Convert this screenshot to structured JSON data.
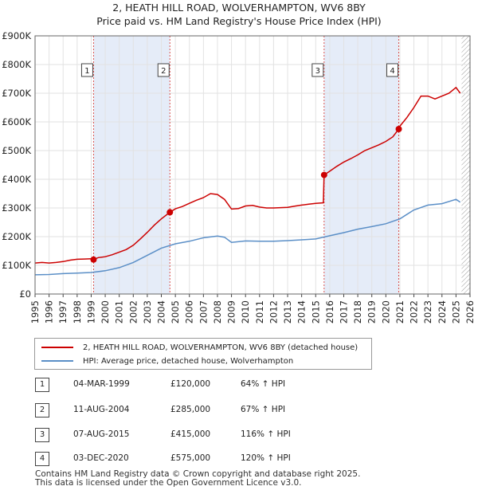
{
  "chart_data": {
    "type": "line",
    "title": "2, HEATH HILL ROAD, WOLVERHAMPTON, WV6 8BY",
    "subtitle": "Price paid vs. HM Land Registry's House Price Index (HPI)",
    "xlim": [
      1995,
      2026
    ],
    "ylim": [
      0,
      900000
    ],
    "x_ticks": [
      "1995",
      "1996",
      "1997",
      "1998",
      "1999",
      "2000",
      "2001",
      "2002",
      "2003",
      "2004",
      "2005",
      "2006",
      "2007",
      "2008",
      "2009",
      "2010",
      "2011",
      "2012",
      "2013",
      "2014",
      "2015",
      "2016",
      "2017",
      "2018",
      "2019",
      "2020",
      "2021",
      "2022",
      "2023",
      "2024",
      "2025",
      "2026"
    ],
    "y_ticks": [
      {
        "value": 0,
        "label": "£0"
      },
      {
        "value": 100000,
        "label": "£100K"
      },
      {
        "value": 200000,
        "label": "£200K"
      },
      {
        "value": 300000,
        "label": "£300K"
      },
      {
        "value": 400000,
        "label": "£400K"
      },
      {
        "value": 500000,
        "label": "£500K"
      },
      {
        "value": 600000,
        "label": "£600K"
      },
      {
        "value": 700000,
        "label": "£700K"
      },
      {
        "value": 800000,
        "label": "£800K"
      },
      {
        "value": 900000,
        "label": "£900K"
      }
    ],
    "grid": true,
    "hatch_from": 2025.4,
    "series": [
      {
        "name": "2, HEATH HILL ROAD, WOLVERHAMPTON, WV6 8BY (detached house)",
        "color": "#cc0000",
        "points": [
          [
            1995,
            108000
          ],
          [
            1995.5,
            110000
          ],
          [
            1996,
            108000
          ],
          [
            1996.5,
            110000
          ],
          [
            1997,
            113000
          ],
          [
            1997.5,
            118000
          ],
          [
            1998,
            121000
          ],
          [
            1998.5,
            122000
          ],
          [
            1999,
            123000
          ],
          [
            1999.17,
            120000
          ],
          [
            1999.5,
            127000
          ],
          [
            2000,
            130000
          ],
          [
            2000.5,
            137000
          ],
          [
            2001,
            146000
          ],
          [
            2001.5,
            155000
          ],
          [
            2002,
            170000
          ],
          [
            2002.5,
            192000
          ],
          [
            2003,
            215000
          ],
          [
            2003.5,
            240000
          ],
          [
            2004,
            262000
          ],
          [
            2004.61,
            285000
          ],
          [
            2005,
            297000
          ],
          [
            2005.5,
            305000
          ],
          [
            2006,
            316000
          ],
          [
            2006.5,
            327000
          ],
          [
            2007,
            336000
          ],
          [
            2007.5,
            350000
          ],
          [
            2008,
            347000
          ],
          [
            2008.5,
            330000
          ],
          [
            2009,
            296000
          ],
          [
            2009.5,
            298000
          ],
          [
            2010,
            307000
          ],
          [
            2010.5,
            309000
          ],
          [
            2011,
            303000
          ],
          [
            2011.5,
            300000
          ],
          [
            2012,
            300000
          ],
          [
            2012.5,
            301000
          ],
          [
            2013,
            302000
          ],
          [
            2013.5,
            306000
          ],
          [
            2014,
            310000
          ],
          [
            2014.5,
            313000
          ],
          [
            2015,
            316000
          ],
          [
            2015.55,
            318000
          ],
          [
            2015.6,
            415000
          ],
          [
            2016,
            428000
          ],
          [
            2016.5,
            445000
          ],
          [
            2017,
            460000
          ],
          [
            2017.5,
            472000
          ],
          [
            2018,
            485000
          ],
          [
            2018.5,
            500000
          ],
          [
            2019,
            510000
          ],
          [
            2019.5,
            520000
          ],
          [
            2020,
            532000
          ],
          [
            2020.5,
            548000
          ],
          [
            2020.92,
            575000
          ],
          [
            2021,
            585000
          ],
          [
            2021.5,
            615000
          ],
          [
            2022,
            650000
          ],
          [
            2022.5,
            690000
          ],
          [
            2023,
            690000
          ],
          [
            2023.5,
            680000
          ],
          [
            2024,
            690000
          ],
          [
            2024.5,
            700000
          ],
          [
            2025,
            720000
          ],
          [
            2025.3,
            700000
          ]
        ]
      },
      {
        "name": "HPI: Average price, detached house, Wolverhampton",
        "color": "#5b8fc7",
        "points": [
          [
            1995,
            67000
          ],
          [
            1996,
            68000
          ],
          [
            1997,
            71000
          ],
          [
            1998,
            73000
          ],
          [
            1999,
            75000
          ],
          [
            2000,
            81000
          ],
          [
            2001,
            92000
          ],
          [
            2002,
            110000
          ],
          [
            2003,
            135000
          ],
          [
            2004,
            160000
          ],
          [
            2005,
            175000
          ],
          [
            2006,
            184000
          ],
          [
            2007,
            196000
          ],
          [
            2008,
            202000
          ],
          [
            2008.5,
            198000
          ],
          [
            2009,
            180000
          ],
          [
            2010,
            185000
          ],
          [
            2011,
            184000
          ],
          [
            2012,
            184000
          ],
          [
            2013,
            186000
          ],
          [
            2014,
            189000
          ],
          [
            2015,
            192000
          ],
          [
            2016,
            203000
          ],
          [
            2017,
            214000
          ],
          [
            2018,
            226000
          ],
          [
            2019,
            235000
          ],
          [
            2020,
            245000
          ],
          [
            2021,
            262000
          ],
          [
            2022,
            293000
          ],
          [
            2023,
            310000
          ],
          [
            2024,
            315000
          ],
          [
            2025,
            330000
          ],
          [
            2025.3,
            320000
          ]
        ]
      }
    ],
    "transactions": [
      {
        "label": "1",
        "x": 1999.17,
        "price": 120000
      },
      {
        "label": "2",
        "x": 2004.61,
        "price": 285000
      },
      {
        "label": "3",
        "x": 2015.6,
        "price": 415000
      },
      {
        "label": "4",
        "x": 2020.92,
        "price": 575000
      }
    ],
    "shade_bands": [
      [
        1999.17,
        2004.61
      ],
      [
        2015.6,
        2020.92
      ]
    ]
  },
  "legend": {
    "property_label": "2, HEATH HILL ROAD, WOLVERHAMPTON, WV6 8BY (detached house)",
    "hpi_label": "HPI: Average price, detached house, Wolverhampton"
  },
  "transactions_table": [
    {
      "num": "1",
      "date": "04-MAR-1999",
      "price": "£120,000",
      "hpi": "64% ↑ HPI"
    },
    {
      "num": "2",
      "date": "11-AUG-2004",
      "price": "£285,000",
      "hpi": "67% ↑ HPI"
    },
    {
      "num": "3",
      "date": "07-AUG-2015",
      "price": "£415,000",
      "hpi": "116% ↑ HPI"
    },
    {
      "num": "4",
      "date": "03-DEC-2020",
      "price": "£575,000",
      "hpi": "120% ↑ HPI"
    }
  ],
  "footer": {
    "line1": "Contains HM Land Registry data © Crown copyright and database right 2025.",
    "line2": "This data is licensed under the Open Government Licence v3.0."
  }
}
